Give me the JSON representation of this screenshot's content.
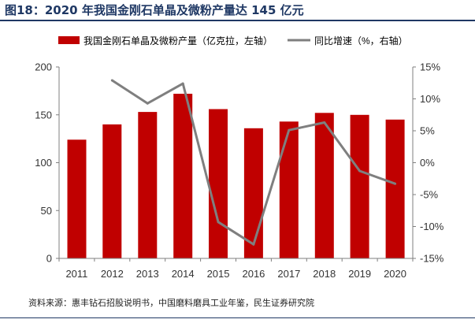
{
  "title": "图18：2020 年我国金刚石单晶及微粉产量达 145 亿元",
  "source": "资料来源：惠丰钻石招股说明书，中国磨料磨具工业年鉴，民生证券研究院",
  "colors": {
    "bar": "#c00000",
    "line": "#7f7f7f",
    "title": "#1f3864",
    "axis": "#7f7f7f"
  },
  "chart_data": {
    "type": "bar",
    "categories": [
      "2011",
      "2012",
      "2013",
      "2014",
      "2015",
      "2016",
      "2017",
      "2018",
      "2019",
      "2020"
    ],
    "series": [
      {
        "name": "我国金刚石单晶及微粉产量（亿克拉，左轴）",
        "type": "bar",
        "axis": "left",
        "values": [
          124,
          140,
          153,
          172,
          156,
          136,
          143,
          152,
          150,
          145
        ]
      },
      {
        "name": "同比增速（%，右轴）",
        "type": "line",
        "axis": "right",
        "values": [
          null,
          12.9,
          9.3,
          12.4,
          -9.3,
          -12.8,
          5.1,
          6.3,
          -1.3,
          -3.3
        ]
      }
    ],
    "y_left": {
      "ylim": [
        0,
        200
      ],
      "ticks": [
        "0",
        "50",
        "100",
        "150",
        "200"
      ],
      "tick_values": [
        0,
        50,
        100,
        150,
        200
      ]
    },
    "y_right": {
      "ylim": [
        -15,
        15
      ],
      "ticks": [
        "-15%",
        "-10%",
        "-5%",
        "0%",
        "5%",
        "10%",
        "15%"
      ],
      "tick_values": [
        -15,
        -10,
        -5,
        0,
        5,
        10,
        15
      ]
    },
    "legend_position": "top",
    "grid": false
  }
}
